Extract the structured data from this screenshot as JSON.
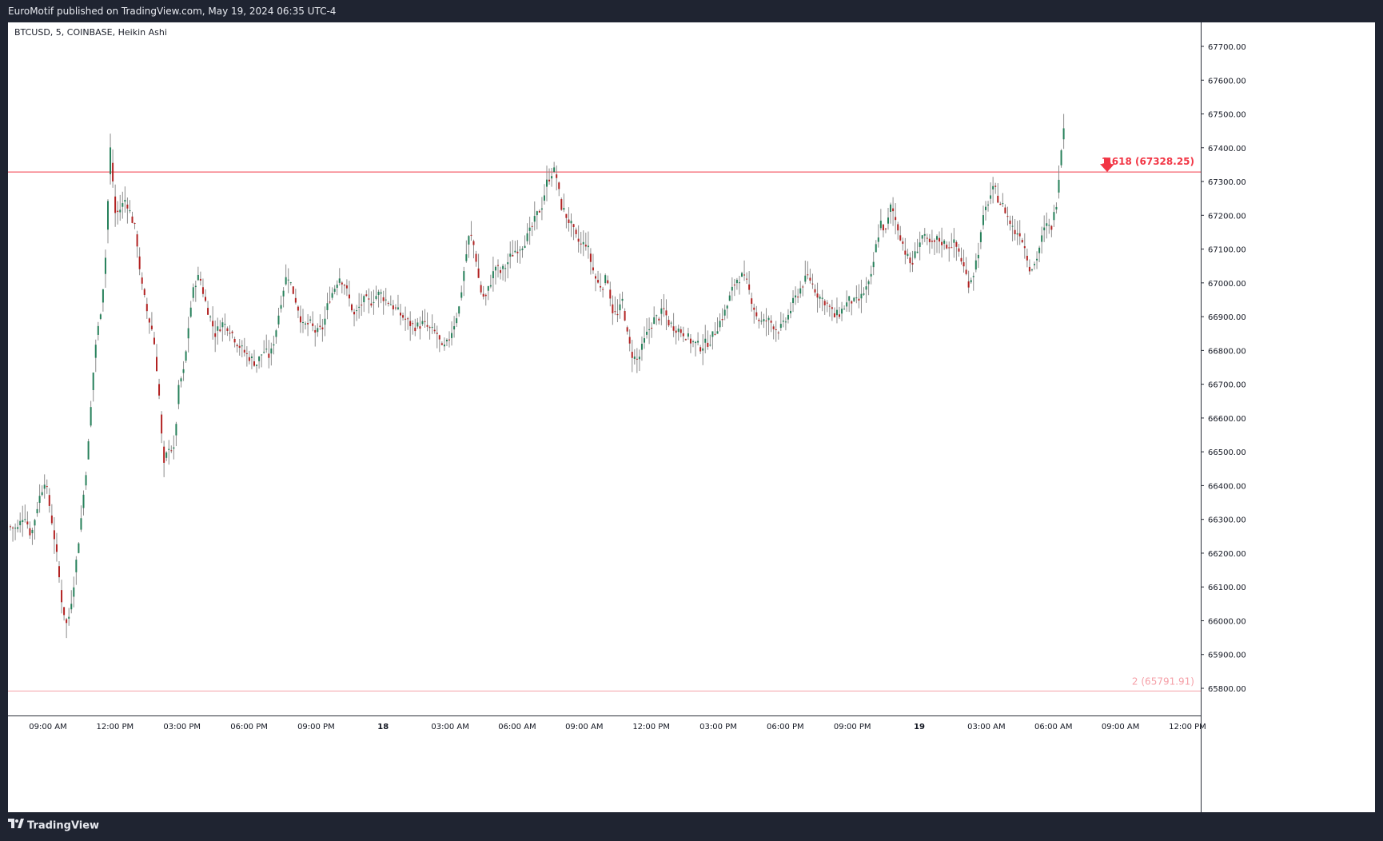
{
  "header": {
    "publish_text": "EuroMotif published on TradingView.com, May 19, 2024 06:35 UTC-4"
  },
  "footer": {
    "brand": "TradingView",
    "logo_icon": "tradingview-logo-icon"
  },
  "colors": {
    "up": "#26805a",
    "down": "#b22222",
    "wick": "#8c8c8c",
    "level_line": "#f23645",
    "level_line_faint": "#f5a0a8"
  },
  "chart_data": {
    "type": "candlestick",
    "title": "BTCUSD, 5, COINBASE, Heikin Ashi",
    "xlabel": "",
    "ylabel": "",
    "ylim": [
      65700,
      67800
    ],
    "x_ticks": [
      "09:00 AM",
      "12:00 PM",
      "03:00 PM",
      "06:00 PM",
      "09:00 PM",
      "18",
      "03:00 AM",
      "06:00 AM",
      "09:00 AM",
      "12:00 PM",
      "03:00 PM",
      "06:00 PM",
      "09:00 PM",
      "19",
      "03:00 AM",
      "06:00 AM",
      "09:00 AM",
      "12:00 PM"
    ],
    "y_ticks": [
      "67700.00",
      "67600.00",
      "67500.00",
      "67400.00",
      "67300.00",
      "67200.00",
      "67100.00",
      "67000.00",
      "66900.00",
      "66800.00",
      "66700.00",
      "66600.00",
      "66500.00",
      "66400.00",
      "66300.00",
      "66200.00",
      "66100.00",
      "66000.00",
      "65900.00",
      "65800.00"
    ],
    "levels": [
      {
        "label": "1.618 (67328.25)",
        "value": 67328.25,
        "arrow_icon": "down-arrow-icon"
      },
      {
        "label": "2 (65791.91)",
        "value": 65791.91
      }
    ],
    "price_path": [
      {
        "t": 0,
        "p": 66280
      },
      {
        "t": 10,
        "p": 66270
      },
      {
        "t": 18,
        "p": 66320
      },
      {
        "t": 26,
        "p": 66250
      },
      {
        "t": 34,
        "p": 66350
      },
      {
        "t": 42,
        "p": 66420
      },
      {
        "t": 48,
        "p": 66330
      },
      {
        "t": 54,
        "p": 66230
      },
      {
        "t": 62,
        "p": 66050
      },
      {
        "t": 68,
        "p": 65980
      },
      {
        "t": 75,
        "p": 66100
      },
      {
        "t": 84,
        "p": 66300
      },
      {
        "t": 92,
        "p": 66500
      },
      {
        "t": 100,
        "p": 66800
      },
      {
        "t": 106,
        "p": 66900
      },
      {
        "t": 112,
        "p": 67050
      },
      {
        "t": 118,
        "p": 67400
      },
      {
        "t": 124,
        "p": 67200
      },
      {
        "t": 130,
        "p": 67220
      },
      {
        "t": 136,
        "p": 67250
      },
      {
        "t": 142,
        "p": 67200
      },
      {
        "t": 148,
        "p": 67150
      },
      {
        "t": 154,
        "p": 67000
      },
      {
        "t": 162,
        "p": 66900
      },
      {
        "t": 168,
        "p": 66850
      },
      {
        "t": 174,
        "p": 66700
      },
      {
        "t": 180,
        "p": 66450
      },
      {
        "t": 186,
        "p": 66520
      },
      {
        "t": 192,
        "p": 66500
      },
      {
        "t": 198,
        "p": 66700
      },
      {
        "t": 204,
        "p": 66740
      },
      {
        "t": 210,
        "p": 66900
      },
      {
        "t": 216,
        "p": 67000
      },
      {
        "t": 222,
        "p": 67020
      },
      {
        "t": 228,
        "p": 66950
      },
      {
        "t": 234,
        "p": 66900
      },
      {
        "t": 240,
        "p": 66850
      },
      {
        "t": 248,
        "p": 66880
      },
      {
        "t": 256,
        "p": 66870
      },
      {
        "t": 264,
        "p": 66830
      },
      {
        "t": 272,
        "p": 66800
      },
      {
        "t": 280,
        "p": 66780
      },
      {
        "t": 288,
        "p": 66760
      },
      {
        "t": 296,
        "p": 66800
      },
      {
        "t": 304,
        "p": 66780
      },
      {
        "t": 310,
        "p": 66850
      },
      {
        "t": 318,
        "p": 66970
      },
      {
        "t": 324,
        "p": 67030
      },
      {
        "t": 330,
        "p": 66980
      },
      {
        "t": 336,
        "p": 66930
      },
      {
        "t": 342,
        "p": 66870
      },
      {
        "t": 350,
        "p": 66880
      },
      {
        "t": 358,
        "p": 66850
      },
      {
        "t": 366,
        "p": 66870
      },
      {
        "t": 372,
        "p": 66950
      },
      {
        "t": 378,
        "p": 66980
      },
      {
        "t": 384,
        "p": 67020
      },
      {
        "t": 390,
        "p": 67000
      },
      {
        "t": 396,
        "p": 66950
      },
      {
        "t": 402,
        "p": 66900
      },
      {
        "t": 408,
        "p": 66930
      },
      {
        "t": 414,
        "p": 66950
      },
      {
        "t": 420,
        "p": 66940
      },
      {
        "t": 426,
        "p": 66960
      },
      {
        "t": 432,
        "p": 66970
      },
      {
        "t": 438,
        "p": 66950
      },
      {
        "t": 444,
        "p": 66940
      },
      {
        "t": 450,
        "p": 66920
      },
      {
        "t": 458,
        "p": 66900
      },
      {
        "t": 466,
        "p": 66880
      },
      {
        "t": 474,
        "p": 66870
      },
      {
        "t": 482,
        "p": 66880
      },
      {
        "t": 490,
        "p": 66860
      },
      {
        "t": 498,
        "p": 66850
      },
      {
        "t": 504,
        "p": 66800
      },
      {
        "t": 510,
        "p": 66820
      },
      {
        "t": 518,
        "p": 66880
      },
      {
        "t": 524,
        "p": 66930
      },
      {
        "t": 530,
        "p": 67050
      },
      {
        "t": 536,
        "p": 67150
      },
      {
        "t": 542,
        "p": 67100
      },
      {
        "t": 548,
        "p": 66980
      },
      {
        "t": 554,
        "p": 66950
      },
      {
        "t": 560,
        "p": 67000
      },
      {
        "t": 566,
        "p": 67050
      },
      {
        "t": 572,
        "p": 67030
      },
      {
        "t": 578,
        "p": 67050
      },
      {
        "t": 584,
        "p": 67080
      },
      {
        "t": 590,
        "p": 67100
      },
      {
        "t": 596,
        "p": 67110
      },
      {
        "t": 602,
        "p": 67130
      },
      {
        "t": 608,
        "p": 67160
      },
      {
        "t": 614,
        "p": 67200
      },
      {
        "t": 620,
        "p": 67230
      },
      {
        "t": 626,
        "p": 67300
      },
      {
        "t": 632,
        "p": 67330
      },
      {
        "t": 636,
        "p": 67330
      },
      {
        "t": 642,
        "p": 67230
      },
      {
        "t": 648,
        "p": 67200
      },
      {
        "t": 654,
        "p": 67170
      },
      {
        "t": 660,
        "p": 67130
      },
      {
        "t": 666,
        "p": 67110
      },
      {
        "t": 672,
        "p": 67120
      },
      {
        "t": 678,
        "p": 67050
      },
      {
        "t": 684,
        "p": 67000
      },
      {
        "t": 690,
        "p": 66990
      },
      {
        "t": 696,
        "p": 67020
      },
      {
        "t": 702,
        "p": 66920
      },
      {
        "t": 708,
        "p": 66900
      },
      {
        "t": 714,
        "p": 66950
      },
      {
        "t": 720,
        "p": 66830
      },
      {
        "t": 726,
        "p": 66780
      },
      {
        "t": 732,
        "p": 66770
      },
      {
        "t": 738,
        "p": 66820
      },
      {
        "t": 744,
        "p": 66860
      },
      {
        "t": 750,
        "p": 66890
      },
      {
        "t": 756,
        "p": 66900
      },
      {
        "t": 762,
        "p": 66920
      },
      {
        "t": 768,
        "p": 66880
      },
      {
        "t": 774,
        "p": 66870
      },
      {
        "t": 780,
        "p": 66860
      },
      {
        "t": 786,
        "p": 66850
      },
      {
        "t": 792,
        "p": 66830
      },
      {
        "t": 798,
        "p": 66820
      },
      {
        "t": 804,
        "p": 66810
      },
      {
        "t": 810,
        "p": 66820
      },
      {
        "t": 816,
        "p": 66830
      },
      {
        "t": 822,
        "p": 66860
      },
      {
        "t": 828,
        "p": 66890
      },
      {
        "t": 834,
        "p": 66920
      },
      {
        "t": 840,
        "p": 66970
      },
      {
        "t": 846,
        "p": 67010
      },
      {
        "t": 852,
        "p": 67020
      },
      {
        "t": 858,
        "p": 67000
      },
      {
        "t": 864,
        "p": 66950
      },
      {
        "t": 870,
        "p": 66900
      },
      {
        "t": 876,
        "p": 66880
      },
      {
        "t": 882,
        "p": 66890
      },
      {
        "t": 888,
        "p": 66880
      },
      {
        "t": 894,
        "p": 66860
      },
      {
        "t": 900,
        "p": 66870
      },
      {
        "t": 906,
        "p": 66900
      },
      {
        "t": 912,
        "p": 66940
      },
      {
        "t": 918,
        "p": 66970
      },
      {
        "t": 924,
        "p": 67000
      },
      {
        "t": 930,
        "p": 67020
      },
      {
        "t": 936,
        "p": 66990
      },
      {
        "t": 942,
        "p": 66960
      },
      {
        "t": 948,
        "p": 66950
      },
      {
        "t": 954,
        "p": 66930
      },
      {
        "t": 960,
        "p": 66900
      },
      {
        "t": 966,
        "p": 66910
      },
      {
        "t": 972,
        "p": 66930
      },
      {
        "t": 978,
        "p": 66950
      },
      {
        "t": 984,
        "p": 66940
      },
      {
        "t": 990,
        "p": 66950
      },
      {
        "t": 996,
        "p": 66980
      },
      {
        "t": 1002,
        "p": 67000
      },
      {
        "t": 1008,
        "p": 67100
      },
      {
        "t": 1014,
        "p": 67180
      },
      {
        "t": 1020,
        "p": 67150
      },
      {
        "t": 1026,
        "p": 67230
      },
      {
        "t": 1032,
        "p": 67180
      },
      {
        "t": 1038,
        "p": 67130
      },
      {
        "t": 1044,
        "p": 67080
      },
      {
        "t": 1050,
        "p": 67050
      },
      {
        "t": 1056,
        "p": 67100
      },
      {
        "t": 1062,
        "p": 67140
      },
      {
        "t": 1068,
        "p": 67120
      },
      {
        "t": 1074,
        "p": 67110
      },
      {
        "t": 1080,
        "p": 67130
      },
      {
        "t": 1086,
        "p": 67120
      },
      {
        "t": 1092,
        "p": 67110
      },
      {
        "t": 1098,
        "p": 67120
      },
      {
        "t": 1104,
        "p": 67100
      },
      {
        "t": 1110,
        "p": 67050
      },
      {
        "t": 1116,
        "p": 67000
      },
      {
        "t": 1122,
        "p": 67030
      },
      {
        "t": 1128,
        "p": 67100
      },
      {
        "t": 1134,
        "p": 67200
      },
      {
        "t": 1140,
        "p": 67250
      },
      {
        "t": 1146,
        "p": 67280
      },
      {
        "t": 1152,
        "p": 67240
      },
      {
        "t": 1158,
        "p": 67220
      },
      {
        "t": 1164,
        "p": 67180
      },
      {
        "t": 1170,
        "p": 67150
      },
      {
        "t": 1176,
        "p": 67150
      },
      {
        "t": 1182,
        "p": 67100
      },
      {
        "t": 1188,
        "p": 67040
      },
      {
        "t": 1194,
        "p": 67060
      },
      {
        "t": 1200,
        "p": 67120
      },
      {
        "t": 1206,
        "p": 67170
      },
      {
        "t": 1212,
        "p": 67160
      },
      {
        "t": 1218,
        "p": 67230
      },
      {
        "t": 1224,
        "p": 67400
      },
      {
        "t": 1230,
        "p": 67540
      }
    ]
  }
}
